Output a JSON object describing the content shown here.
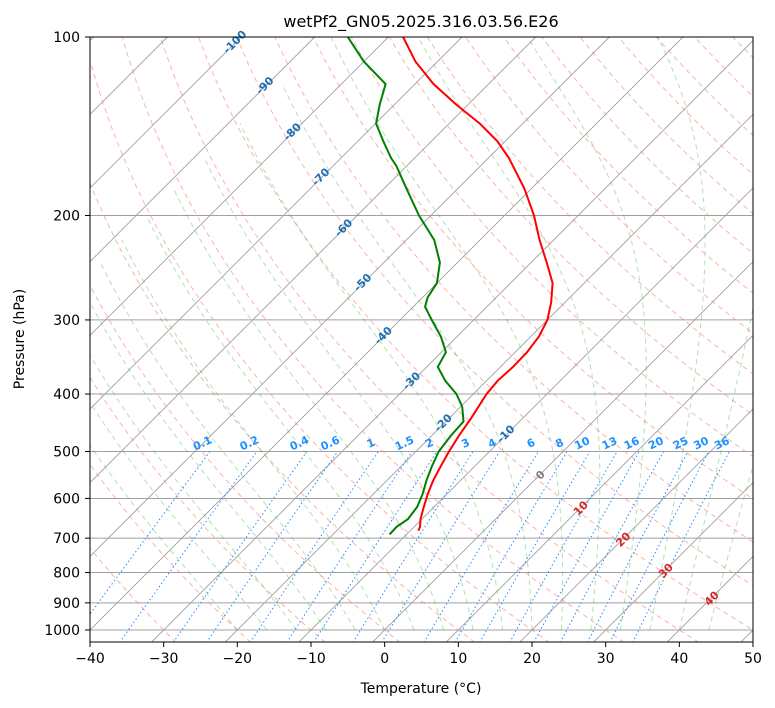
{
  "chart_data": {
    "type": "line",
    "title": "wetPf2_GN05.2025.316.03.56.E26",
    "xlabel": "Temperature (°C)",
    "ylabel": "Pressure (hPa)",
    "xlim": [
      -40,
      50
    ],
    "ylim": [
      1050,
      100
    ],
    "x_ticks": [
      -40,
      -30,
      -20,
      -10,
      0,
      10,
      20,
      30,
      40,
      50
    ],
    "y_ticks": [
      1000,
      900,
      800,
      700,
      600,
      500,
      400,
      300,
      200,
      100
    ],
    "series": [
      {
        "name": "Temperature",
        "color": "#ff0000",
        "points": [
          [
            680,
            -8.9
          ],
          [
            670,
            -9.2
          ],
          [
            650,
            -10.2
          ],
          [
            620,
            -11.4
          ],
          [
            590,
            -12.6
          ],
          [
            560,
            -13.7
          ],
          [
            530,
            -14.6
          ],
          [
            500,
            -15.5
          ],
          [
            470,
            -16.3
          ],
          [
            440,
            -17.0
          ],
          [
            400,
            -18.2
          ],
          [
            380,
            -18.5
          ],
          [
            360,
            -18.3
          ],
          [
            340,
            -18.4
          ],
          [
            320,
            -18.9
          ],
          [
            300,
            -20.0
          ],
          [
            280,
            -21.9
          ],
          [
            260,
            -24.3
          ],
          [
            240,
            -27.9
          ],
          [
            220,
            -31.9
          ],
          [
            200,
            -36.0
          ],
          [
            180,
            -41.0
          ],
          [
            160,
            -47.2
          ],
          [
            150,
            -51.0
          ],
          [
            140,
            -55.8
          ],
          [
            130,
            -61.6
          ],
          [
            120,
            -67.5
          ],
          [
            110,
            -73.0
          ],
          [
            100,
            -78.0
          ]
        ]
      },
      {
        "name": "Dewpoint",
        "color": "#008000",
        "points": [
          [
            690,
            -12.3
          ],
          [
            670,
            -12.4
          ],
          [
            650,
            -11.9
          ],
          [
            620,
            -12.3
          ],
          [
            590,
            -13.3
          ],
          [
            560,
            -14.6
          ],
          [
            530,
            -15.8
          ],
          [
            500,
            -16.9
          ],
          [
            470,
            -17.4
          ],
          [
            445,
            -17.6
          ],
          [
            420,
            -19.8
          ],
          [
            400,
            -22.3
          ],
          [
            380,
            -25.6
          ],
          [
            360,
            -28.5
          ],
          [
            340,
            -29.4
          ],
          [
            320,
            -32.2
          ],
          [
            300,
            -35.7
          ],
          [
            285,
            -38.4
          ],
          [
            275,
            -39.3
          ],
          [
            260,
            -40.0
          ],
          [
            240,
            -42.4
          ],
          [
            220,
            -46.2
          ],
          [
            200,
            -51.6
          ],
          [
            180,
            -57.0
          ],
          [
            165,
            -61.4
          ],
          [
            160,
            -63.2
          ],
          [
            150,
            -66.5
          ],
          [
            140,
            -69.9
          ],
          [
            130,
            -72.0
          ],
          [
            120,
            -74.0
          ],
          [
            110,
            -80.0
          ],
          [
            100,
            -85.5
          ]
        ]
      }
    ],
    "isotherm_labels": [
      "-100",
      "-90",
      "-80",
      "-70",
      "-60",
      "-50",
      "-40",
      "-30",
      "-20",
      "-10"
    ],
    "mixing_ratio_labels": [
      "0.1",
      "0.2",
      "0.4",
      "0.6",
      "1",
      "1.5",
      "2",
      "3",
      "4",
      "6",
      "8",
      "10",
      "13",
      "16",
      "20",
      "25",
      "30",
      "36"
    ],
    "freezing_level_label": "0",
    "isotherm_labels_warm": [
      "10",
      "20",
      "30",
      "40"
    ],
    "colors": {
      "isotherm_label": "#1f6fb4",
      "mixing_ratio": "#1e90ff",
      "warm_label": "#d62728",
      "dry_adiabat": "#fa8072",
      "moist_adiabat": "#2ca02c",
      "isobar": "#a0a0a0"
    }
  }
}
